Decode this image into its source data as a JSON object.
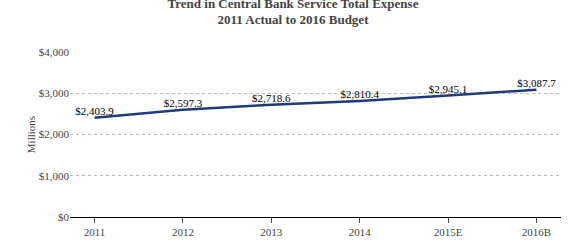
{
  "chart_data": {
    "type": "line",
    "title": "Trend in Central Bank Service Total Expense",
    "subtitle": "2011 Actual to 2016 Budget",
    "categories": [
      "2011",
      "2012",
      "2013",
      "2014",
      "2015E",
      "2016B"
    ],
    "values": [
      2403.9,
      2597.3,
      2718.6,
      2810.4,
      2945.1,
      3087.7
    ],
    "value_labels": [
      "$2,403.9",
      "$2,597.3",
      "$2,718.6",
      "$2,810.4",
      "$2,945.1",
      "$3,087.7"
    ],
    "data_labels": true,
    "ylabel": "Millions",
    "ylim": [
      0,
      4000
    ],
    "yticks": [
      {
        "value": 0,
        "label": "$0"
      },
      {
        "value": 1000,
        "label": "$1,000"
      },
      {
        "value": 2000,
        "label": "$2,000"
      },
      {
        "value": 3000,
        "label": "$3,000"
      },
      {
        "value": 4000,
        "label": "$4,000"
      }
    ],
    "color": "#1F3A7A",
    "grid": true
  }
}
